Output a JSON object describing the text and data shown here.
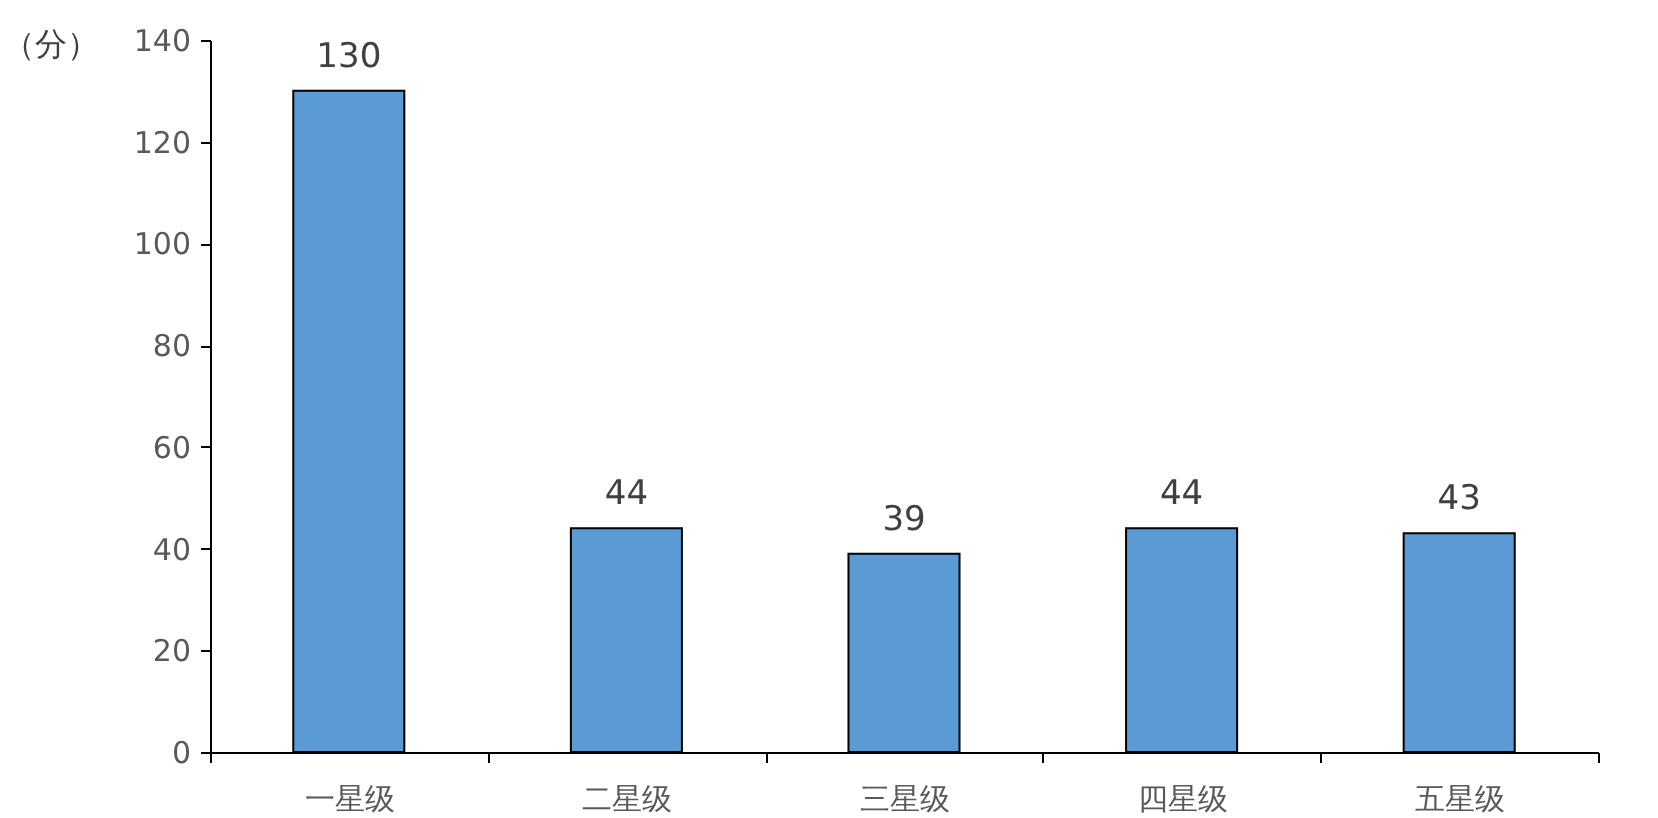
{
  "chart_data": {
    "type": "bar",
    "ylabel": "（分）",
    "categories": [
      "一星级",
      "二星级",
      "三星级",
      "四星级",
      "五星级"
    ],
    "values": [
      130,
      44,
      39,
      44,
      43
    ],
    "color": "#5b9bd5",
    "ylim": [
      0,
      140
    ],
    "yticks": [
      0,
      20,
      40,
      60,
      80,
      100,
      120,
      140
    ],
    "data_labels": true
  }
}
